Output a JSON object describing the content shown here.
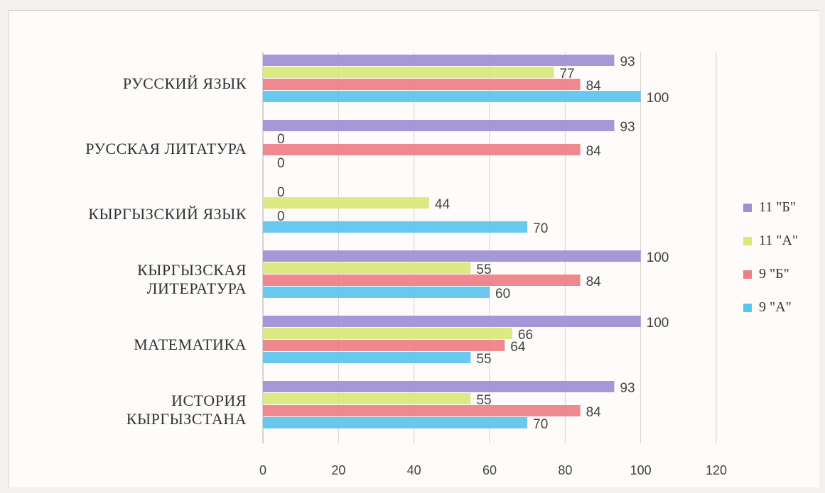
{
  "chart_data": {
    "type": "bar",
    "orientation": "horizontal",
    "categories": [
      [
        "РУССКИЙ ЯЗЫК"
      ],
      [
        "РУССКАЯ ЛИТАТУРА"
      ],
      [
        "КЫРГЫЗСКИЙ ЯЗЫК"
      ],
      [
        "КЫРГЫЗСКАЯ",
        "ЛИТЕРАТУРА"
      ],
      [
        "МАТЕМАТИКА"
      ],
      [
        "ИСТОРИЯ",
        "КЫРГЫЗСТАНА"
      ]
    ],
    "series": [
      {
        "name": "11 \"Б\"",
        "color": "#9d8fd6",
        "values": [
          93,
          93,
          null,
          100,
          100,
          93
        ],
        "labels": [
          "93",
          "93",
          "0",
          "100",
          "100",
          "93"
        ]
      },
      {
        "name": "11 \"А\"",
        "color": "#d9e87a",
        "values": [
          77,
          null,
          44,
          55,
          66,
          55
        ],
        "labels": [
          "77",
          "0",
          "44",
          "55",
          "66",
          "55"
        ]
      },
      {
        "name": "9 \"Б\"",
        "color": "#ee7f86",
        "values": [
          84,
          84,
          null,
          84,
          64,
          84
        ],
        "labels": [
          "84",
          "84",
          "0",
          "84",
          "64",
          "84"
        ]
      },
      {
        "name": "9 \"А\"",
        "color": "#5bc3ef",
        "values": [
          100,
          null,
          70,
          60,
          55,
          70
        ],
        "labels": [
          "100",
          "0",
          "70",
          "60",
          "55",
          "70"
        ]
      }
    ],
    "xlim": [
      0,
      120
    ],
    "x_ticks": [
      "0",
      "20",
      "40",
      "60",
      "80",
      "100",
      "120"
    ],
    "grid": true,
    "legend_position": "right"
  }
}
